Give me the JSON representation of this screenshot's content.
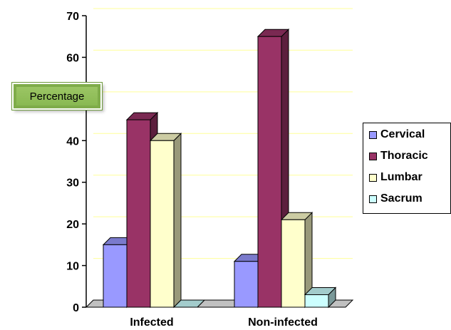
{
  "chart_data": {
    "type": "bar",
    "ylabel": "Percentage",
    "categories": [
      "Infected",
      "Non-infected"
    ],
    "ylim": [
      0,
      70
    ],
    "yticks": [
      0,
      10,
      20,
      30,
      40,
      50,
      60,
      70
    ],
    "grid": true,
    "legend_position": "right",
    "series": [
      {
        "name": "Cervical",
        "values": [
          15,
          11
        ],
        "color": "#9999ff"
      },
      {
        "name": "Thoracic",
        "values": [
          45,
          65
        ],
        "color": "#993366"
      },
      {
        "name": "Lumbar",
        "values": [
          40,
          21
        ],
        "color": "#ffffcc"
      },
      {
        "name": "Sacrum",
        "values": [
          0,
          3
        ],
        "color": "#ccffff"
      }
    ]
  }
}
